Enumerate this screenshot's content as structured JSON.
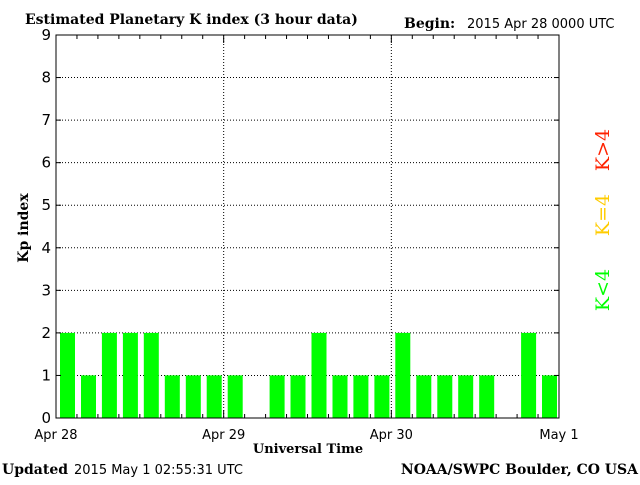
{
  "header": {
    "title": "Estimated Planetary K index (3 hour data)",
    "begin_label": "Begin:",
    "begin_value": "2015 Apr 28 0000 UTC"
  },
  "footer": {
    "updated_label": "Updated",
    "updated_value": "2015 May  1 02:55:31 UTC",
    "source": "NOAA/SWPC Boulder, CO USA"
  },
  "legend": {
    "low": "K<4",
    "mid": "K=4",
    "high": "K>4"
  },
  "colors": {
    "low": "#00ff00",
    "mid": "#ffcc00",
    "high": "#ff2200",
    "axis": "#000000"
  },
  "chart_data": {
    "type": "bar",
    "title": "Estimated Planetary K index (3 hour data)",
    "xlabel": "Universal Time",
    "ylabel": "Kp index",
    "ylim": [
      0,
      9
    ],
    "yticks": [
      0,
      1,
      2,
      3,
      4,
      5,
      6,
      7,
      8,
      9
    ],
    "x_tick_labels": [
      "Apr 28",
      "Apr 29",
      "Apr 30",
      "May 1"
    ],
    "slots_per_day": 8,
    "days": 3,
    "grid": true,
    "values": [
      2,
      1,
      2,
      2,
      2,
      1,
      1,
      1,
      1,
      null,
      1,
      1,
      2,
      1,
      1,
      1,
      2,
      1,
      1,
      1,
      1,
      null,
      2,
      1
    ]
  }
}
